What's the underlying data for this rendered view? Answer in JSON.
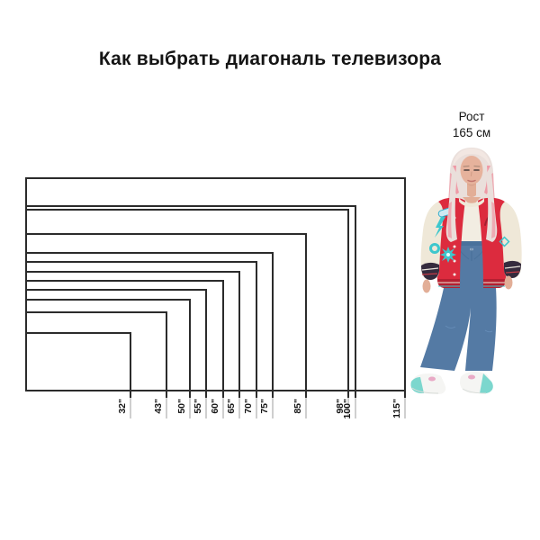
{
  "title": "Как выбрать диагональ телевизора",
  "person": {
    "height_label_line1": "Рост",
    "height_label_line2": "165 см",
    "height_cm": 165
  },
  "chart_data": {
    "type": "nested-rectangles",
    "title": "Как выбрать диагональ телевизора",
    "unit": "inches (TV diagonal)",
    "aspect_ratio": "16:9",
    "anchor": "shared bottom-left corner",
    "axis": "bottom",
    "diagonals_inches": [
      32,
      43,
      50,
      55,
      60,
      65,
      70,
      75,
      85,
      98,
      100,
      115
    ],
    "tick_labels": [
      "32\"",
      "43\"",
      "50\"",
      "55\"",
      "60\"",
      "65\"",
      "70\"",
      "75\"",
      "85\"",
      "98\"",
      "100\"",
      "115\""
    ],
    "reference_figure": {
      "label": "Рост 165 см",
      "height_cm": 165
    }
  },
  "colors": {
    "background": "#ffffff",
    "line": "#2b2b2b",
    "text": "#151515",
    "tick_extension": "#cfcfcf",
    "jacket_red": "#dc2b3e",
    "jacket_hem_dark": "#b51f31",
    "sleeve_cream": "#efe8d8",
    "patch_teal": "#3ec7cd",
    "denim_blue": "#547aa4",
    "hair_blonde": "#eadfdb",
    "hair_pink": "#ef9aa6",
    "skin": "#e2ae97",
    "sneaker_white": "#f5f5f3",
    "sneaker_mint": "#7cd7ce",
    "sneaker_pink": "#e9aac6"
  }
}
